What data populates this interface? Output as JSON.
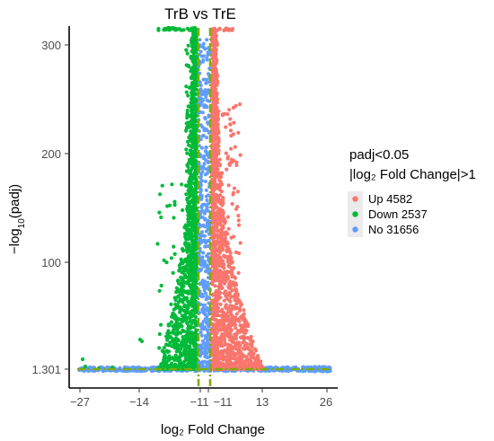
{
  "chart_data": {
    "type": "scatter",
    "title": "TrB vs TrE",
    "xlabel": "log₂ Fold Change",
    "ylabel_main": "−log",
    "ylabel_sub": "10",
    "ylabel_tail": "(padj)",
    "x_ticks": [
      "−27",
      "−14",
      "−11",
      "−11",
      "13",
      "26"
    ],
    "y_ticks": [
      "300",
      "200",
      "100",
      "1.301"
    ],
    "ylim": [
      0,
      315
    ],
    "legend": {
      "title_line1": "padj<0.05",
      "title_line2": "|log₂ Fold Change|>1",
      "placement": "right",
      "entries": [
        {
          "label": "Up 4582",
          "color": "#F8766D"
        },
        {
          "label": "Down 2537",
          "color": "#00BA38"
        },
        {
          "label": "No 31656",
          "color": "#619CFF"
        }
      ]
    },
    "threshold_color": "#7CAE00",
    "series": [
      {
        "name": "Up",
        "color": "#F8766D",
        "count": 4582
      },
      {
        "name": "Down",
        "color": "#00BA38",
        "count": 2537
      },
      {
        "name": "No",
        "color": "#619CFF",
        "count": 31656
      }
    ]
  }
}
